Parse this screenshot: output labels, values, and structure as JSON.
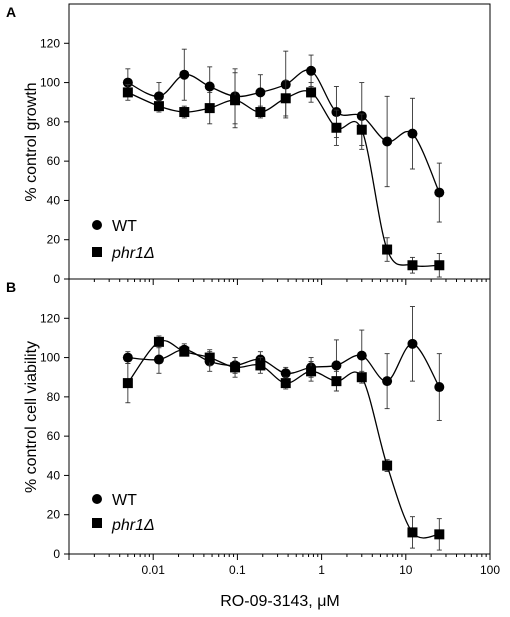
{
  "chart_data": [
    {
      "type": "line",
      "panel_label": "A",
      "ylabel": "% control growth",
      "xlabel": "",
      "xscale": "log",
      "xlim": [
        0.001,
        100
      ],
      "ylim": [
        0,
        140
      ],
      "yticks": [
        "0",
        "20",
        "40",
        "60",
        "80",
        "100",
        "120"
      ],
      "legend_placement": "bottom-left",
      "x": [
        0.005,
        0.0117,
        0.0234,
        0.0469,
        0.0938,
        0.1875,
        0.375,
        0.75,
        1.5,
        3,
        6,
        12,
        25
      ],
      "series": [
        {
          "name": "WT",
          "marker": "circle",
          "italic": false,
          "values": [
            100,
            93,
            104,
            98,
            93,
            95,
            99,
            106,
            85,
            83,
            70,
            74,
            44
          ],
          "error": [
            7,
            7,
            13,
            10,
            14,
            9,
            17,
            8,
            13,
            17,
            23,
            18,
            15
          ]
        },
        {
          "name": "phr1Δ",
          "marker": "square",
          "italic": true,
          "values": [
            95,
            88,
            85,
            87,
            91,
            85,
            92,
            95,
            77,
            76,
            15,
            7,
            7
          ],
          "error": [
            4,
            3,
            3,
            8,
            14,
            3,
            9,
            5,
            9,
            8,
            6,
            4,
            6
          ]
        }
      ]
    },
    {
      "type": "line",
      "panel_label": "B",
      "ylabel": "% control cell viability",
      "xlabel": "RO-09-3143, μM",
      "xscale": "log",
      "xlim": [
        0.001,
        100
      ],
      "ylim": [
        0,
        140
      ],
      "yticks": [
        "0",
        "20",
        "40",
        "60",
        "80",
        "100",
        "120"
      ],
      "xticks": [
        "0.01",
        "0.1",
        "1",
        "10",
        "100"
      ],
      "legend_placement": "bottom-left",
      "x": [
        0.005,
        0.0117,
        0.0234,
        0.0469,
        0.0938,
        0.1875,
        0.375,
        0.75,
        1.5,
        3,
        6,
        12,
        25
      ],
      "series": [
        {
          "name": "WT",
          "marker": "circle",
          "italic": false,
          "values": [
            100,
            99,
            104,
            98,
            96,
            99,
            92,
            95,
            96,
            101,
            88,
            107,
            85
          ],
          "error": [
            3,
            7,
            3,
            5,
            4,
            4,
            3,
            5,
            13,
            13,
            14,
            19,
            17
          ]
        },
        {
          "name": "phr1Δ",
          "marker": "square",
          "italic": true,
          "values": [
            87,
            108,
            103,
            100,
            95,
            96,
            87,
            93,
            88,
            90,
            45,
            11,
            10
          ],
          "error": [
            10,
            3,
            2,
            4,
            5,
            4,
            3,
            5,
            5,
            3,
            3,
            8,
            8
          ]
        }
      ]
    }
  ]
}
